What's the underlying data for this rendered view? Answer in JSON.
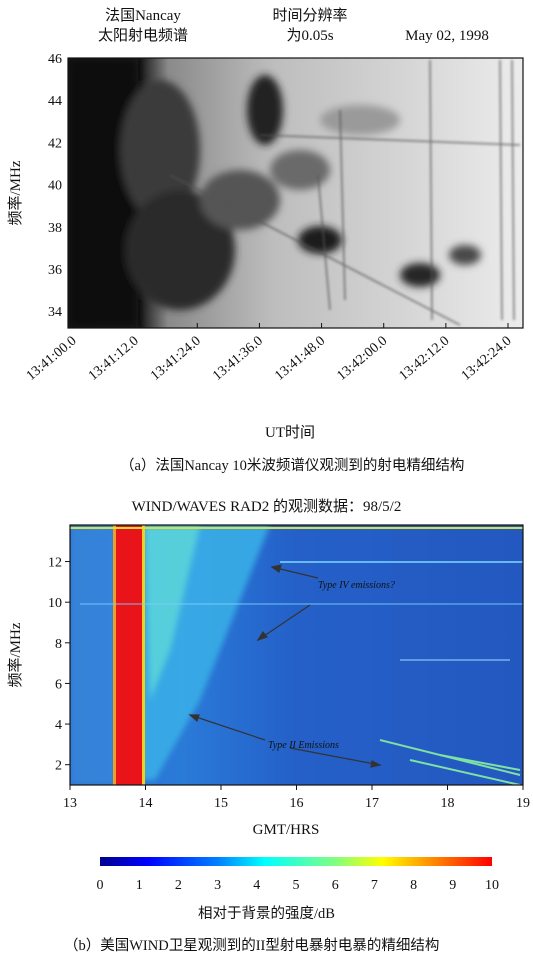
{
  "chart_data": [
    {
      "type": "heatmap",
      "panel": "a",
      "header": {
        "left_line1": "法国Nancay",
        "left_line2": "太阳射电频谱",
        "mid_line1": "时间分辨率",
        "mid_line2": "为0.05s",
        "right": "May 02, 1998"
      },
      "ylabel": "频率/MHz",
      "xlabel": "UT时间",
      "yticks": [
        34,
        36,
        38,
        40,
        42,
        44,
        46
      ],
      "ylim": [
        33.2,
        46
      ],
      "xticks": [
        "13:41:00.0",
        "13:41:12.0",
        "13:41:24.0",
        "13:41:36.0",
        "13:41:48.0",
        "13:42:00.0",
        "13:42:12.0",
        "13:42:24.0"
      ],
      "colormap": "grayscale",
      "caption": "（a）法国Nancay 10米波频谱仪观测到的射电精细结构"
    },
    {
      "type": "heatmap",
      "panel": "b",
      "title": "WIND/WAVES RAD2 的观测数据：98/5/2",
      "ylabel": "频率/MHz",
      "xlabel": "GMT/HRS",
      "yticks": [
        2,
        4,
        6,
        8,
        10,
        12
      ],
      "ylim": [
        1,
        13.8
      ],
      "xticks": [
        13,
        14,
        15,
        16,
        17,
        18,
        19
      ],
      "xlim": [
        13,
        19
      ],
      "annotations": [
        "Type IV emissions?",
        "Type II Emissions"
      ],
      "colorbar": {
        "ticks": [
          0,
          1,
          2,
          3,
          4,
          5,
          6,
          7,
          8,
          9,
          10
        ],
        "label": "相对于背景的强度/dB",
        "colors": [
          "#00008f",
          "#0000ff",
          "#0080ff",
          "#00ffff",
          "#80ff80",
          "#ffff00",
          "#ff8000",
          "#ff0000"
        ]
      },
      "colormap": "jet",
      "caption": "（b）美国WIND卫星观测到的II型射电暴射电暴的精细结构"
    }
  ]
}
